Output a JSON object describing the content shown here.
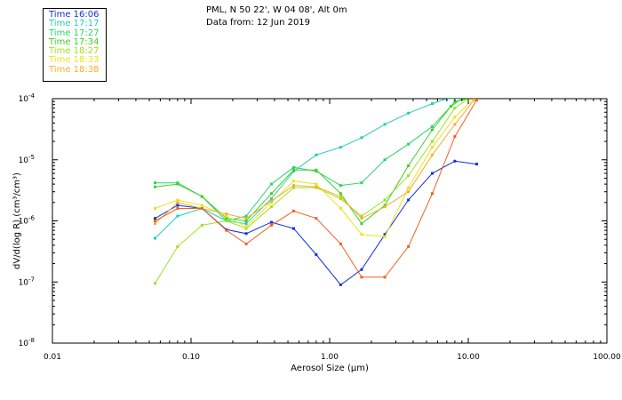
{
  "header": {
    "location": "PML, N 50 22', W 04 08', Alt 0m",
    "date": "Data from: 12 Jun 2019"
  },
  "chart_data": {
    "type": "line",
    "xlabel": "Aerosol Size (µm)",
    "ylabel": "dV/d(log R) (cm³/cm³)",
    "xscale": "log",
    "yscale": "log",
    "xlim": [
      0.01,
      100
    ],
    "ylim": [
      1e-08,
      0.0001
    ],
    "x_ticks": [
      {
        "value": 0.01,
        "label": "0.01"
      },
      {
        "value": 0.1,
        "label": "0.10"
      },
      {
        "value": 1,
        "label": "1.00"
      },
      {
        "value": 10,
        "label": "10.00"
      },
      {
        "value": 100,
        "label": "100.00"
      }
    ],
    "y_ticks": [
      {
        "value": 0.0001,
        "base": "10",
        "exp": "-4"
      },
      {
        "value": 1e-05,
        "base": "10",
        "exp": "-5"
      },
      {
        "value": 1e-06,
        "base": "10",
        "exp": "-6"
      },
      {
        "value": 1e-07,
        "base": "10",
        "exp": "-7"
      },
      {
        "value": 1e-08,
        "base": "10",
        "exp": "-8"
      }
    ],
    "legend_position": "top-left",
    "grid": false,
    "series": [
      {
        "name": "Time 16:06",
        "color": "#1030e0",
        "x": [
          0.055,
          0.08,
          0.12,
          0.18,
          0.25,
          0.38,
          0.55,
          0.8,
          1.2,
          1.7,
          2.5,
          3.7,
          5.5,
          8,
          11.5
        ],
        "y": [
          1.1e-06,
          1.8e-06,
          1.6e-06,
          7.2e-07,
          6.2e-07,
          9.5e-07,
          7.5e-07,
          2.8e-07,
          9e-08,
          1.6e-07,
          6e-07,
          2.2e-06,
          6e-06,
          9.5e-06,
          8.5e-06
        ]
      },
      {
        "name": "Time 17:17",
        "color": "#20d0b0",
        "x": [
          0.055,
          0.08,
          0.12,
          0.18,
          0.25,
          0.38,
          0.55,
          0.8,
          1.2,
          1.7,
          2.5,
          3.7,
          5.5,
          7,
          9
        ],
        "y": [
          5.2e-07,
          1.2e-06,
          1.6e-06,
          1e-06,
          9e-07,
          2.3e-06,
          6.5e-06,
          1.2e-05,
          1.6e-05,
          2.3e-05,
          3.8e-05,
          5.8e-05,
          8.3e-05,
          0.0001,
          0.0001
        ]
      },
      {
        "name": "Time 17:27",
        "color": "#20d868",
        "x": [
          0.055,
          0.08,
          0.12,
          0.18,
          0.25,
          0.38,
          0.55,
          0.8,
          1.2,
          1.7,
          2.5,
          3.7,
          5.5,
          7.5,
          9
        ],
        "y": [
          4.2e-06,
          4.2e-06,
          2.5e-06,
          1e-06,
          1.2e-06,
          4e-06,
          7.5e-06,
          6.5e-06,
          3.8e-06,
          4.2e-06,
          1e-05,
          1.8e-05,
          3.5e-05,
          7.5e-05,
          0.0001
        ]
      },
      {
        "name": "Time 17:34",
        "color": "#40d020",
        "x": [
          0.055,
          0.08,
          0.12,
          0.18,
          0.25,
          0.38,
          0.55,
          0.8,
          1.2,
          1.7,
          2.5,
          3.7,
          5.5,
          8,
          10
        ],
        "y": [
          3.6e-06,
          4e-06,
          2.5e-06,
          1.1e-06,
          1e-06,
          2.8e-06,
          6.8e-06,
          6.8e-06,
          2.8e-06,
          9e-07,
          1.8e-06,
          8e-06,
          3.1e-05,
          9e-05,
          0.0001
        ]
      },
      {
        "name": "Time 18:27",
        "color": "#a0e020",
        "x": [
          0.055,
          0.08,
          0.12,
          0.18,
          0.25,
          0.38,
          0.55,
          0.8,
          1.2,
          1.7,
          2.5,
          3.7,
          5.5,
          8,
          10
        ],
        "y": [
          9.5e-08,
          3.8e-07,
          8.5e-07,
          1e-06,
          7.5e-07,
          1.7e-06,
          3.5e-06,
          3.5e-06,
          2.3e-06,
          1.2e-06,
          2.2e-06,
          5.5e-06,
          2e-05,
          7e-05,
          0.0001
        ]
      },
      {
        "name": "Time 18:33",
        "color": "#f0e020",
        "x": [
          0.055,
          0.08,
          0.12,
          0.18,
          0.25,
          0.38,
          0.55,
          0.8,
          1.2,
          1.7,
          2.5,
          3.7,
          5.5,
          8,
          11
        ],
        "y": [
          1.6e-06,
          2.2e-06,
          1.8e-06,
          1.2e-06,
          8e-07,
          2e-06,
          4.5e-06,
          4e-06,
          1.6e-06,
          6e-07,
          5.5e-07,
          3.5e-06,
          1.6e-05,
          5e-05,
          0.0001
        ]
      },
      {
        "name": "Time 18:38",
        "color": "#f0b030",
        "x": [
          0.055,
          0.08,
          0.12,
          0.18,
          0.25,
          0.38,
          0.55,
          0.8,
          1.2,
          1.7,
          2.5,
          3.7,
          5.5,
          8,
          11
        ],
        "y": [
          9e-07,
          2e-06,
          1.6e-06,
          1.3e-06,
          1.1e-06,
          2.1e-06,
          3.8e-06,
          3.6e-06,
          2.5e-06,
          1.1e-06,
          1.7e-06,
          3e-06,
          1.2e-05,
          3.8e-05,
          9.5e-05
        ]
      },
      {
        "name": "",
        "color": "#f06020",
        "x": [
          0.055,
          0.08,
          0.12,
          0.18,
          0.25,
          0.38,
          0.55,
          0.8,
          1.2,
          1.7,
          2.5,
          3.7,
          5.5,
          8,
          11.5
        ],
        "y": [
          1e-06,
          1.6e-06,
          1.6e-06,
          7e-07,
          4.2e-07,
          8.5e-07,
          1.45e-06,
          1.1e-06,
          4.2e-07,
          1.2e-07,
          1.2e-07,
          3.8e-07,
          2.8e-06,
          2.4e-05,
          9.5e-05
        ]
      }
    ]
  }
}
